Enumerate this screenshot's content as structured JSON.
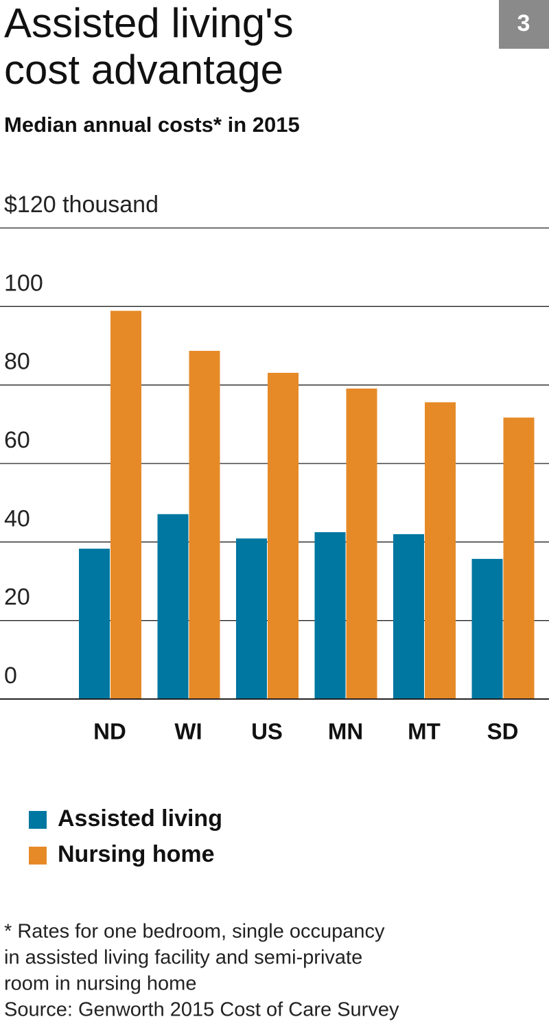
{
  "badge": "3",
  "chart_data": {
    "type": "bar",
    "title_lines": [
      "Assisted living's",
      "cost advantage"
    ],
    "subtitle": "Median annual costs* in 2015",
    "categories": [
      "ND",
      "WI",
      "US",
      "MN",
      "MT",
      "SD"
    ],
    "series": [
      {
        "name": "Assisted living",
        "color": "#0077a0",
        "values": [
          38.3,
          47.1,
          40.9,
          42.5,
          42.0,
          35.7
        ]
      },
      {
        "name": "Nursing home",
        "color": "#e68a28",
        "values": [
          98.9,
          88.7,
          83.1,
          79.1,
          75.6,
          71.7
        ]
      }
    ],
    "ylim": [
      0,
      120
    ],
    "yticks": [
      0,
      20,
      40,
      60,
      80,
      100,
      {
        "value": 120,
        "label": "$120 thousand"
      }
    ],
    "grid": true,
    "footnote_lines": [
      "* Rates for one bedroom, single occupancy",
      "in assisted living facility and semi-private",
      "room in nursing home",
      "Source: Genworth 2015 Cost of Care Survey"
    ]
  }
}
